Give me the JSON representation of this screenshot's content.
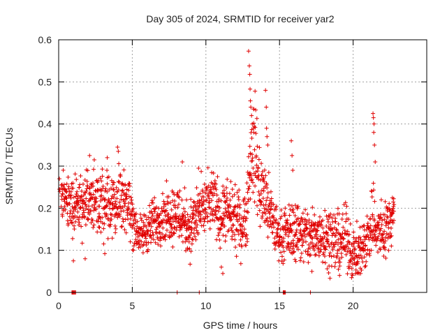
{
  "chart_data": {
    "type": "scatter",
    "title": "Day 305 of 2024, SRMTID for receiver yar2",
    "xlabel": "GPS time / hours",
    "ylabel": "SRMTID / TECUs",
    "xlim": [
      0,
      25
    ],
    "ylim": [
      0,
      0.6
    ],
    "grid": true,
    "marker": "+",
    "series_color": "#e00000",
    "x_ticks": [
      {
        "value": 0,
        "label": "0"
      },
      {
        "value": 5,
        "label": "5"
      },
      {
        "value": 10,
        "label": "10"
      },
      {
        "value": 15,
        "label": "15"
      },
      {
        "value": 20,
        "label": "20"
      }
    ],
    "y_ticks": [
      {
        "value": 0,
        "label": "0"
      },
      {
        "value": 0.1,
        "label": "0.1"
      },
      {
        "value": 0.2,
        "label": "0.2"
      },
      {
        "value": 0.3,
        "label": "0.3"
      },
      {
        "value": 0.4,
        "label": "0.4"
      },
      {
        "value": 0.5,
        "label": "0.5"
      },
      {
        "value": 0.6,
        "label": "0.6"
      }
    ],
    "trend": {
      "x": [
        0.0,
        1.0,
        1.5,
        2.0,
        3.0,
        3.5,
        4.0,
        4.5,
        5.0,
        5.5,
        6.0,
        7.0,
        8.0,
        8.5,
        9.0,
        9.5,
        10.0,
        10.5,
        11.0,
        11.5,
        12.0,
        12.5,
        12.8,
        13.0,
        13.3,
        13.6,
        14.0,
        14.5,
        15.0,
        15.5,
        16.0,
        17.0,
        18.0,
        19.0,
        19.5,
        20.0,
        20.5,
        21.0,
        21.3,
        21.6,
        22.0,
        22.5,
        22.8
      ],
      "y": [
        0.24,
        0.2,
        0.21,
        0.22,
        0.2,
        0.21,
        0.22,
        0.23,
        0.18,
        0.13,
        0.15,
        0.18,
        0.19,
        0.17,
        0.15,
        0.19,
        0.2,
        0.22,
        0.18,
        0.19,
        0.17,
        0.16,
        0.2,
        0.3,
        0.36,
        0.26,
        0.22,
        0.17,
        0.13,
        0.14,
        0.15,
        0.13,
        0.14,
        0.12,
        0.13,
        0.09,
        0.1,
        0.13,
        0.18,
        0.15,
        0.14,
        0.17,
        0.2
      ],
      "spread": [
        0.02,
        0.06,
        0.06,
        0.06,
        0.06,
        0.06,
        0.06,
        0.05,
        0.05,
        0.03,
        0.04,
        0.04,
        0.05,
        0.05,
        0.05,
        0.05,
        0.05,
        0.05,
        0.05,
        0.05,
        0.05,
        0.05,
        0.06,
        0.08,
        0.09,
        0.07,
        0.06,
        0.05,
        0.04,
        0.04,
        0.05,
        0.05,
        0.05,
        0.05,
        0.05,
        0.04,
        0.04,
        0.05,
        0.07,
        0.05,
        0.05,
        0.05,
        0.04
      ]
    },
    "outliers": [
      {
        "x": 12.9,
        "y": 0.573
      },
      {
        "x": 12.95,
        "y": 0.538
      },
      {
        "x": 12.98,
        "y": 0.518
      },
      {
        "x": 13.0,
        "y": 0.483
      },
      {
        "x": 13.02,
        "y": 0.455
      },
      {
        "x": 13.05,
        "y": 0.44
      },
      {
        "x": 13.1,
        "y": 0.42
      },
      {
        "x": 13.15,
        "y": 0.4
      },
      {
        "x": 13.25,
        "y": 0.38
      },
      {
        "x": 14.05,
        "y": 0.48
      },
      {
        "x": 14.1,
        "y": 0.44
      },
      {
        "x": 14.12,
        "y": 0.39
      },
      {
        "x": 14.15,
        "y": 0.37
      },
      {
        "x": 14.2,
        "y": 0.35
      },
      {
        "x": 21.35,
        "y": 0.425
      },
      {
        "x": 21.38,
        "y": 0.415
      },
      {
        "x": 21.42,
        "y": 0.4
      },
      {
        "x": 21.4,
        "y": 0.38
      },
      {
        "x": 21.45,
        "y": 0.35
      },
      {
        "x": 21.5,
        "y": 0.31
      },
      {
        "x": 15.8,
        "y": 0.36
      },
      {
        "x": 15.85,
        "y": 0.325
      },
      {
        "x": 15.9,
        "y": 0.29
      },
      {
        "x": 4.0,
        "y": 0.345
      },
      {
        "x": 4.05,
        "y": 0.335
      },
      {
        "x": 3.3,
        "y": 0.32
      },
      {
        "x": 2.1,
        "y": 0.325
      },
      {
        "x": 8.4,
        "y": 0.31
      },
      {
        "x": 9.5,
        "y": 0.295
      },
      {
        "x": 1.0,
        "y": 0.075
      },
      {
        "x": 1.8,
        "y": 0.08
      },
      {
        "x": 11.15,
        "y": 0.045
      },
      {
        "x": 11.05,
        "y": 0.06
      },
      {
        "x": 19.0,
        "y": 0.055
      },
      {
        "x": 20.4,
        "y": 0.045
      },
      {
        "x": 17.2,
        "y": 0.05
      },
      {
        "x": 0.05,
        "y": 0.27
      },
      {
        "x": 0.05,
        "y": 0.245
      },
      {
        "x": 0.08,
        "y": 0.24
      }
    ],
    "zero_points": [
      0.9,
      0.95,
      1.0,
      1.05,
      1.1,
      1.15,
      8.05,
      9.55,
      15.25,
      15.3,
      15.35,
      15.4,
      17.1
    ]
  }
}
